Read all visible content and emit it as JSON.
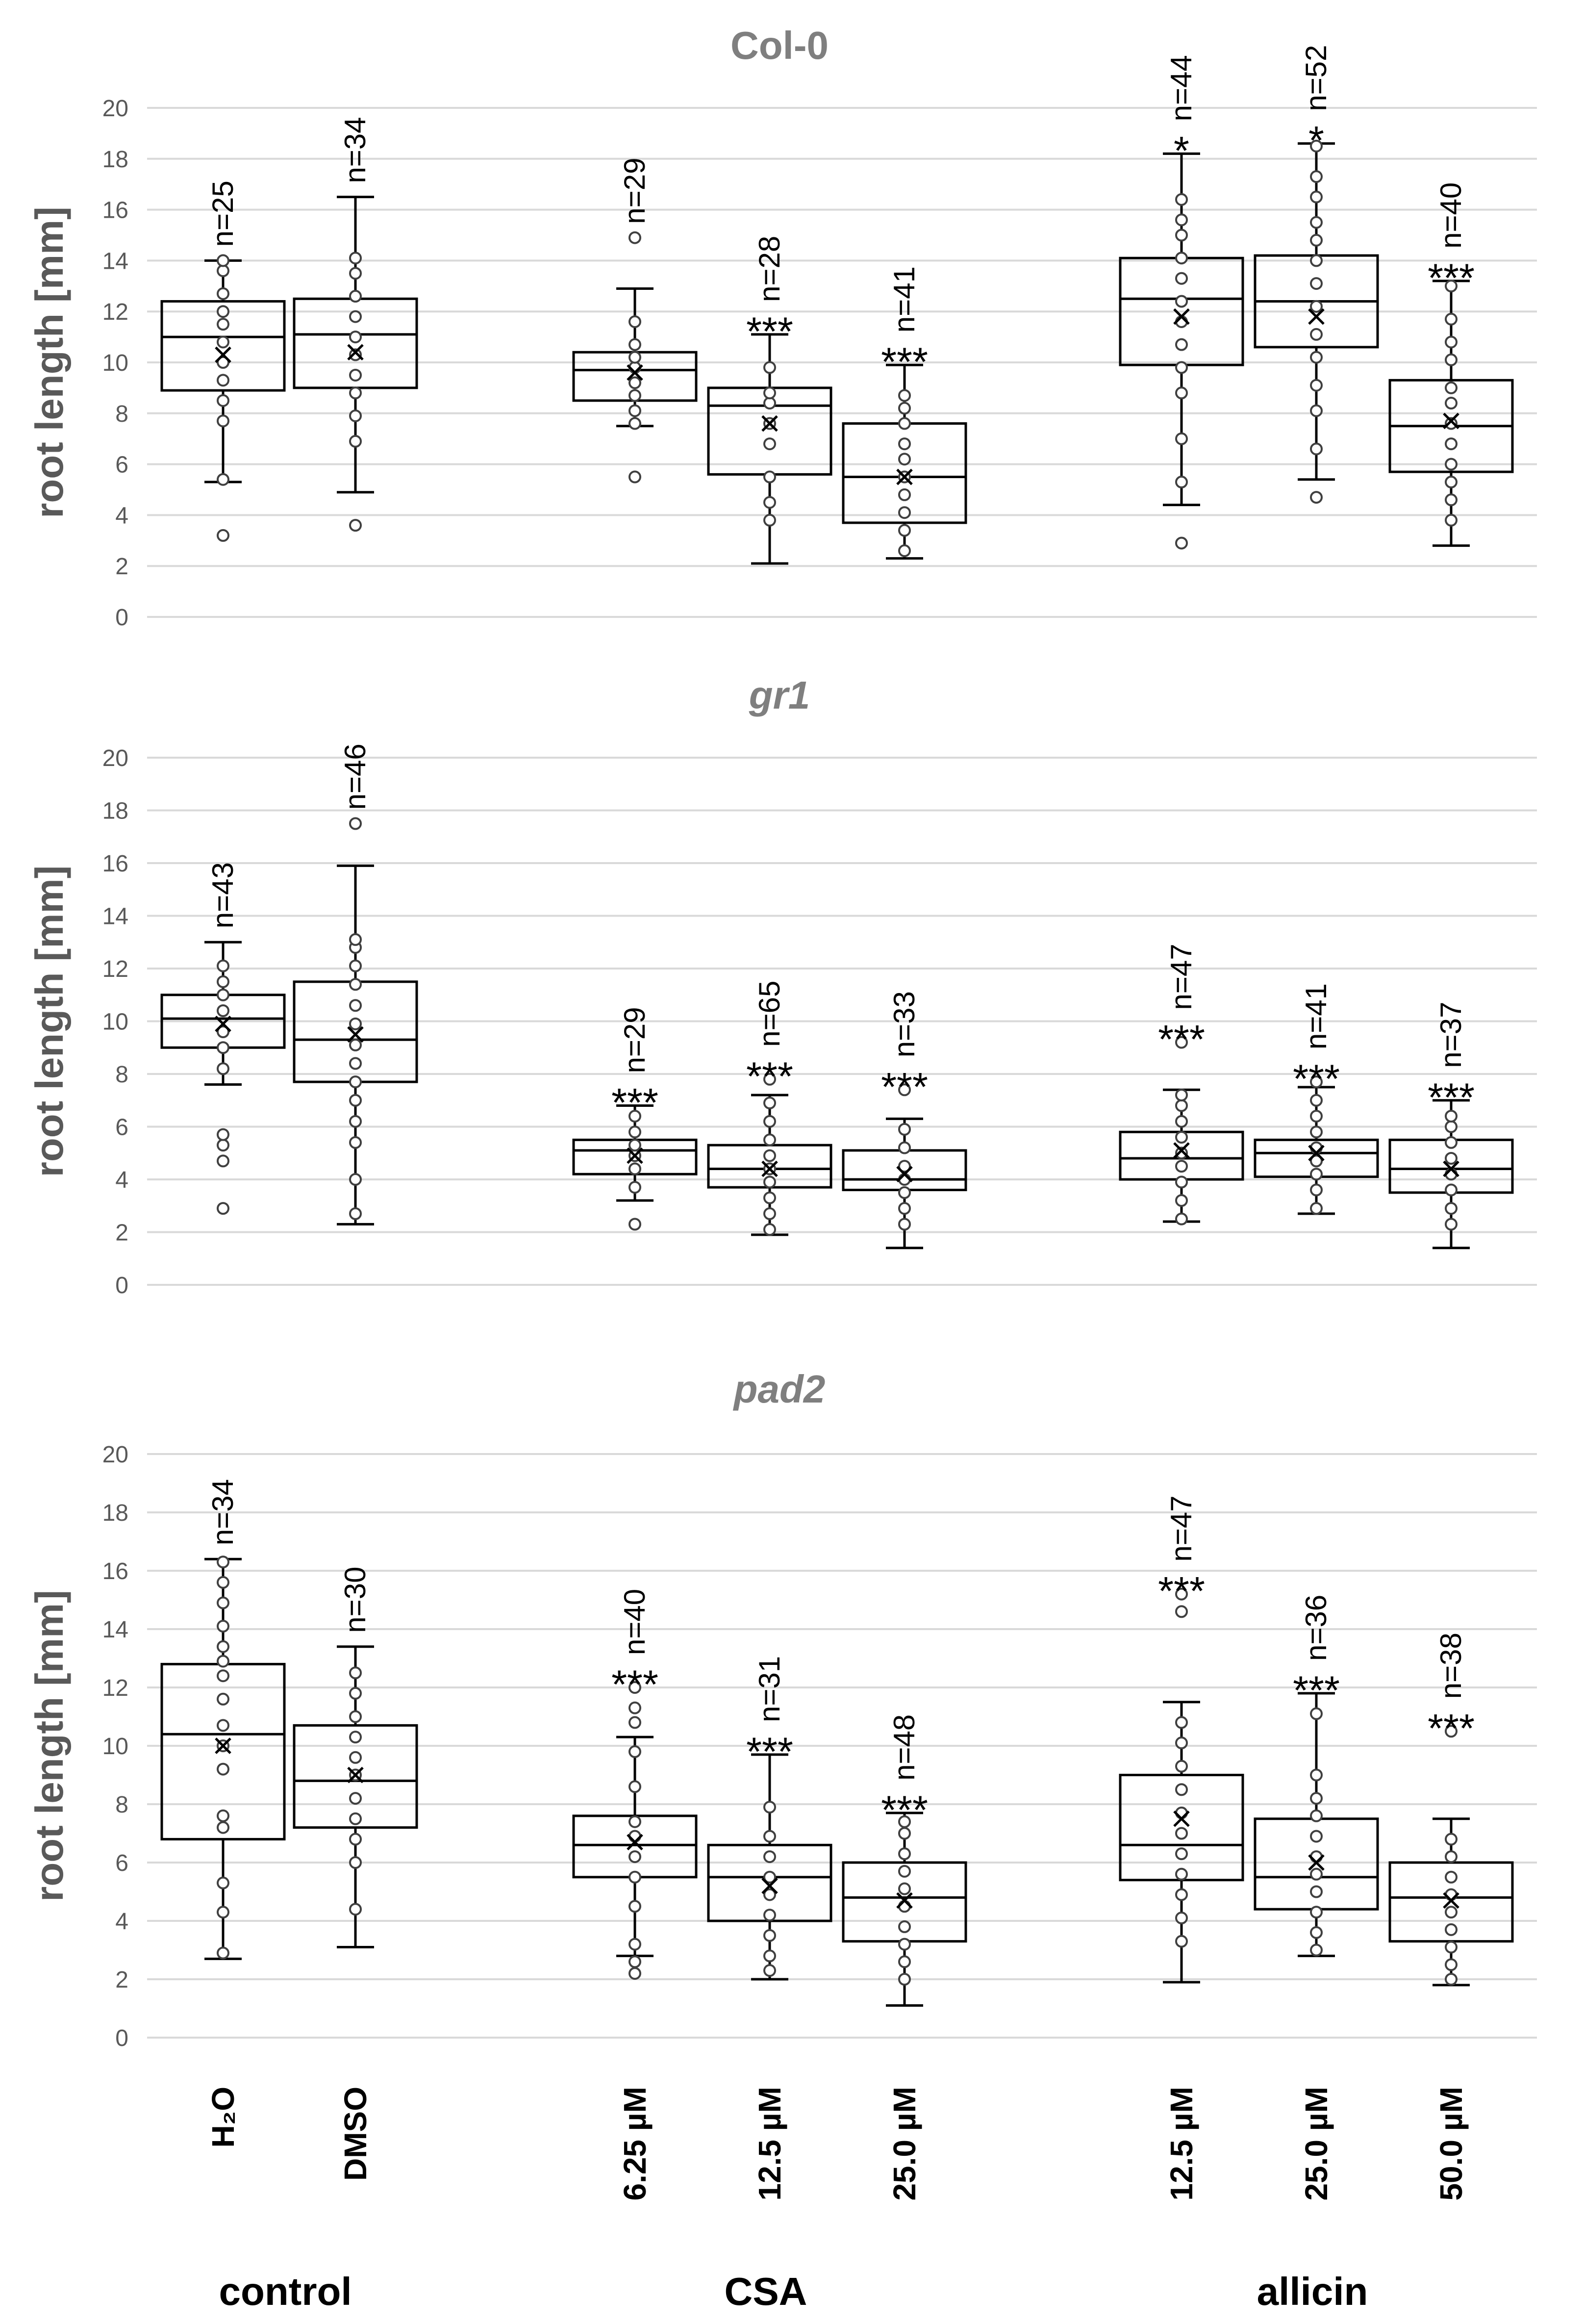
{
  "chart_data": {
    "type": "box",
    "ylabel": "root length [mm]",
    "ylim": [
      0,
      20
    ],
    "yticks": [
      "0",
      "2",
      "4",
      "6",
      "8",
      "10",
      "12",
      "14",
      "16",
      "18",
      "20"
    ],
    "categories": [
      {
        "label": "H2O",
        "display": "H₂O"
      },
      {
        "label": "DMSO",
        "display": "DMSO"
      },
      {
        "label": "6.25 µM",
        "display": "6.25 µM"
      },
      {
        "label": "12.5 µM",
        "display": "12.5 µM"
      },
      {
        "label": "25.0 µM",
        "display": "25.0 µM"
      },
      {
        "label": "12.5 µM",
        "display": "12.5 µM"
      },
      {
        "label": "25.0 µM",
        "display": "25.0 µM"
      },
      {
        "label": "50.0 µM",
        "display": "50.0 µM"
      }
    ],
    "groups": [
      {
        "label": "control",
        "categories": [
          0,
          1
        ]
      },
      {
        "label": "CSA",
        "categories": [
          2,
          3,
          4
        ]
      },
      {
        "label": "allicin",
        "categories": [
          5,
          6,
          7
        ]
      }
    ],
    "panels": [
      {
        "title": "Col-0",
        "italic": false,
        "boxes": [
          {
            "n": "n=25",
            "sig": "",
            "q1": 8.9,
            "median": 11.0,
            "q3": 12.4,
            "whisker_low": 5.3,
            "whisker_high": 14.0,
            "mean": 10.3,
            "points": [
              3.2,
              5.4,
              7.7,
              8.5,
              9.3,
              10.0,
              10.8,
              11.5,
              12.0,
              12.7,
              13.6,
              14.0
            ]
          },
          {
            "n": "n=34",
            "sig": "",
            "q1": 9.0,
            "median": 11.1,
            "q3": 12.5,
            "whisker_low": 4.9,
            "whisker_high": 16.5,
            "mean": 10.4,
            "points": [
              3.6,
              6.9,
              7.9,
              8.8,
              9.5,
              10.3,
              11.0,
              11.8,
              12.6,
              13.5,
              14.1
            ]
          },
          {
            "n": "n=29",
            "sig": "",
            "q1": 8.5,
            "median": 9.7,
            "q3": 10.4,
            "whisker_low": 7.5,
            "whisker_high": 12.9,
            "mean": 9.6,
            "points": [
              5.5,
              7.6,
              8.1,
              8.7,
              9.2,
              9.8,
              10.2,
              10.7,
              11.6,
              14.9
            ]
          },
          {
            "n": "n=28",
            "sig": "***",
            "q1": 5.6,
            "median": 8.3,
            "q3": 9.0,
            "whisker_low": 2.1,
            "whisker_high": 11.1,
            "mean": 7.6,
            "points": [
              3.8,
              4.5,
              5.5,
              6.8,
              7.6,
              8.4,
              8.8,
              9.8
            ]
          },
          {
            "n": "n=41",
            "sig": "***",
            "q1": 3.7,
            "median": 5.5,
            "q3": 7.6,
            "whisker_low": 2.3,
            "whisker_high": 9.9,
            "mean": 5.5,
            "points": [
              2.6,
              3.4,
              4.1,
              4.8,
              5.5,
              6.2,
              6.8,
              7.6,
              8.2,
              8.7
            ]
          },
          {
            "n": "n=44",
            "sig": "*",
            "q1": 9.9,
            "median": 12.5,
            "q3": 14.1,
            "whisker_low": 4.4,
            "whisker_high": 18.2,
            "mean": 11.8,
            "points": [
              2.9,
              5.3,
              7.0,
              8.8,
              9.8,
              10.7,
              11.6,
              12.4,
              13.3,
              14.1,
              15.0,
              15.6,
              16.4
            ]
          },
          {
            "n": "n=52",
            "sig": "*",
            "q1": 10.6,
            "median": 12.4,
            "q3": 14.2,
            "whisker_low": 5.4,
            "whisker_high": 18.6,
            "mean": 11.8,
            "points": [
              4.7,
              6.6,
              8.1,
              9.1,
              10.2,
              11.1,
              12.2,
              13.1,
              14.0,
              14.8,
              15.5,
              16.5,
              17.3,
              18.5
            ]
          },
          {
            "n": "n=40",
            "sig": "***",
            "q1": 5.7,
            "median": 7.5,
            "q3": 9.3,
            "whisker_low": 2.8,
            "whisker_high": 13.2,
            "mean": 7.7,
            "points": [
              3.8,
              4.6,
              5.3,
              6.0,
              6.8,
              7.6,
              8.4,
              9.0,
              10.1,
              10.8,
              11.7,
              13.0
            ]
          }
        ]
      },
      {
        "title": "gr1",
        "italic": true,
        "boxes": [
          {
            "n": "n=43",
            "sig": "",
            "q1": 9.0,
            "median": 10.1,
            "q3": 11.0,
            "whisker_low": 7.6,
            "whisker_high": 13.0,
            "mean": 9.9,
            "points": [
              2.9,
              4.7,
              5.3,
              5.7,
              8.2,
              9.0,
              9.6,
              10.4,
              11.0,
              11.5,
              12.1
            ]
          },
          {
            "n": "n=46",
            "sig": "",
            "q1": 7.7,
            "median": 9.3,
            "q3": 11.5,
            "whisker_low": 2.3,
            "whisker_high": 15.9,
            "mean": 9.5,
            "points": [
              2.7,
              4.0,
              5.4,
              6.2,
              7.0,
              7.7,
              8.4,
              9.1,
              9.9,
              10.6,
              11.4,
              12.1,
              12.8,
              13.1,
              17.5
            ]
          },
          {
            "n": "n=29",
            "sig": "***",
            "q1": 4.2,
            "median": 5.1,
            "q3": 5.5,
            "whisker_low": 3.2,
            "whisker_high": 6.8,
            "mean": 4.9,
            "points": [
              2.3,
              3.7,
              4.4,
              4.9,
              5.3,
              5.8,
              6.4
            ]
          },
          {
            "n": "n=65",
            "sig": "***",
            "q1": 3.7,
            "median": 4.4,
            "q3": 5.3,
            "whisker_low": 1.9,
            "whisker_high": 7.2,
            "mean": 4.4,
            "points": [
              2.1,
              2.7,
              3.3,
              3.9,
              4.4,
              4.9,
              5.5,
              6.2,
              6.9,
              7.8
            ]
          },
          {
            "n": "n=33",
            "sig": "***",
            "q1": 3.6,
            "median": 4.0,
            "q3": 5.1,
            "whisker_low": 1.4,
            "whisker_high": 6.3,
            "mean": 4.2,
            "points": [
              2.3,
              2.9,
              3.5,
              4.0,
              4.5,
              5.2,
              5.9,
              7.4
            ]
          },
          {
            "n": "n=47",
            "sig": "***",
            "q1": 4.0,
            "median": 4.8,
            "q3": 5.8,
            "whisker_low": 2.4,
            "whisker_high": 7.4,
            "mean": 5.1,
            "points": [
              2.5,
              3.2,
              3.9,
              4.5,
              5.0,
              5.6,
              6.2,
              6.8,
              7.2,
              9.2
            ]
          },
          {
            "n": "n=41",
            "sig": "***",
            "q1": 4.1,
            "median": 5.0,
            "q3": 5.5,
            "whisker_low": 2.7,
            "whisker_high": 7.5,
            "mean": 5.0,
            "points": [
              2.9,
              3.6,
              4.2,
              4.7,
              5.2,
              5.8,
              6.4,
              7.0,
              7.7
            ]
          },
          {
            "n": "n=37",
            "sig": "***",
            "q1": 3.5,
            "median": 4.4,
            "q3": 5.5,
            "whisker_low": 1.4,
            "whisker_high": 7.0,
            "mean": 4.4,
            "points": [
              2.3,
              2.9,
              3.6,
              4.2,
              4.8,
              5.4,
              6.0,
              6.4
            ]
          }
        ]
      },
      {
        "title": "pad2",
        "italic": true,
        "boxes": [
          {
            "n": "n=34",
            "sig": "",
            "q1": 6.8,
            "median": 10.4,
            "q3": 12.8,
            "whisker_low": 2.7,
            "whisker_high": 16.4,
            "mean": 10.0,
            "points": [
              2.9,
              4.3,
              5.3,
              7.2,
              7.6,
              9.2,
              10.0,
              10.7,
              11.6,
              12.4,
              12.9,
              13.4,
              14.1,
              14.9,
              15.6,
              16.3
            ]
          },
          {
            "n": "n=30",
            "sig": "",
            "q1": 7.2,
            "median": 8.8,
            "q3": 10.7,
            "whisker_low": 3.1,
            "whisker_high": 13.4,
            "mean": 9.0,
            "points": [
              4.4,
              6.0,
              6.8,
              7.5,
              8.2,
              9.0,
              9.6,
              10.3,
              11.0,
              11.8,
              12.5
            ]
          },
          {
            "n": "n=40",
            "sig": "***",
            "q1": 5.5,
            "median": 6.6,
            "q3": 7.6,
            "whisker_low": 2.8,
            "whisker_high": 10.3,
            "mean": 6.7,
            "points": [
              2.2,
              2.6,
              3.2,
              4.5,
              5.5,
              6.2,
              6.9,
              7.4,
              8.6,
              9.8,
              10.8,
              11.3,
              12.0
            ]
          },
          {
            "n": "n=31",
            "sig": "***",
            "q1": 4.0,
            "median": 5.5,
            "q3": 6.6,
            "whisker_low": 2.0,
            "whisker_high": 9.7,
            "mean": 5.2,
            "points": [
              2.3,
              2.8,
              3.5,
              4.2,
              4.9,
              5.5,
              6.2,
              6.9,
              7.9
            ]
          },
          {
            "n": "n=48",
            "sig": "***",
            "q1": 3.3,
            "median": 4.8,
            "q3": 6.0,
            "whisker_low": 1.1,
            "whisker_high": 7.7,
            "mean": 4.7,
            "points": [
              2.0,
              2.6,
              3.2,
              3.8,
              4.5,
              5.1,
              5.7,
              6.3,
              7.0,
              7.4
            ]
          },
          {
            "n": "n=47",
            "sig": "***",
            "q1": 5.4,
            "median": 6.6,
            "q3": 9.0,
            "whisker_low": 1.9,
            "whisker_high": 11.5,
            "mean": 7.5,
            "points": [
              3.3,
              4.1,
              4.9,
              5.6,
              6.3,
              7.0,
              7.7,
              8.5,
              9.3,
              10.1,
              10.8,
              14.6,
              15.2
            ]
          },
          {
            "n": "n=36",
            "sig": "***",
            "q1": 4.4,
            "median": 5.5,
            "q3": 7.5,
            "whisker_low": 2.8,
            "whisker_high": 11.8,
            "mean": 6.0,
            "points": [
              3.0,
              3.6,
              4.3,
              5.0,
              5.6,
              6.2,
              6.9,
              7.6,
              8.2,
              9.0,
              11.1
            ]
          },
          {
            "n": "n=38",
            "sig": "***",
            "q1": 3.3,
            "median": 4.8,
            "q3": 6.0,
            "whisker_low": 1.8,
            "whisker_high": 7.5,
            "mean": 4.7,
            "points": [
              2.0,
              2.5,
              3.1,
              3.7,
              4.3,
              4.9,
              5.5,
              6.2,
              6.8,
              10.5
            ]
          }
        ]
      }
    ]
  }
}
